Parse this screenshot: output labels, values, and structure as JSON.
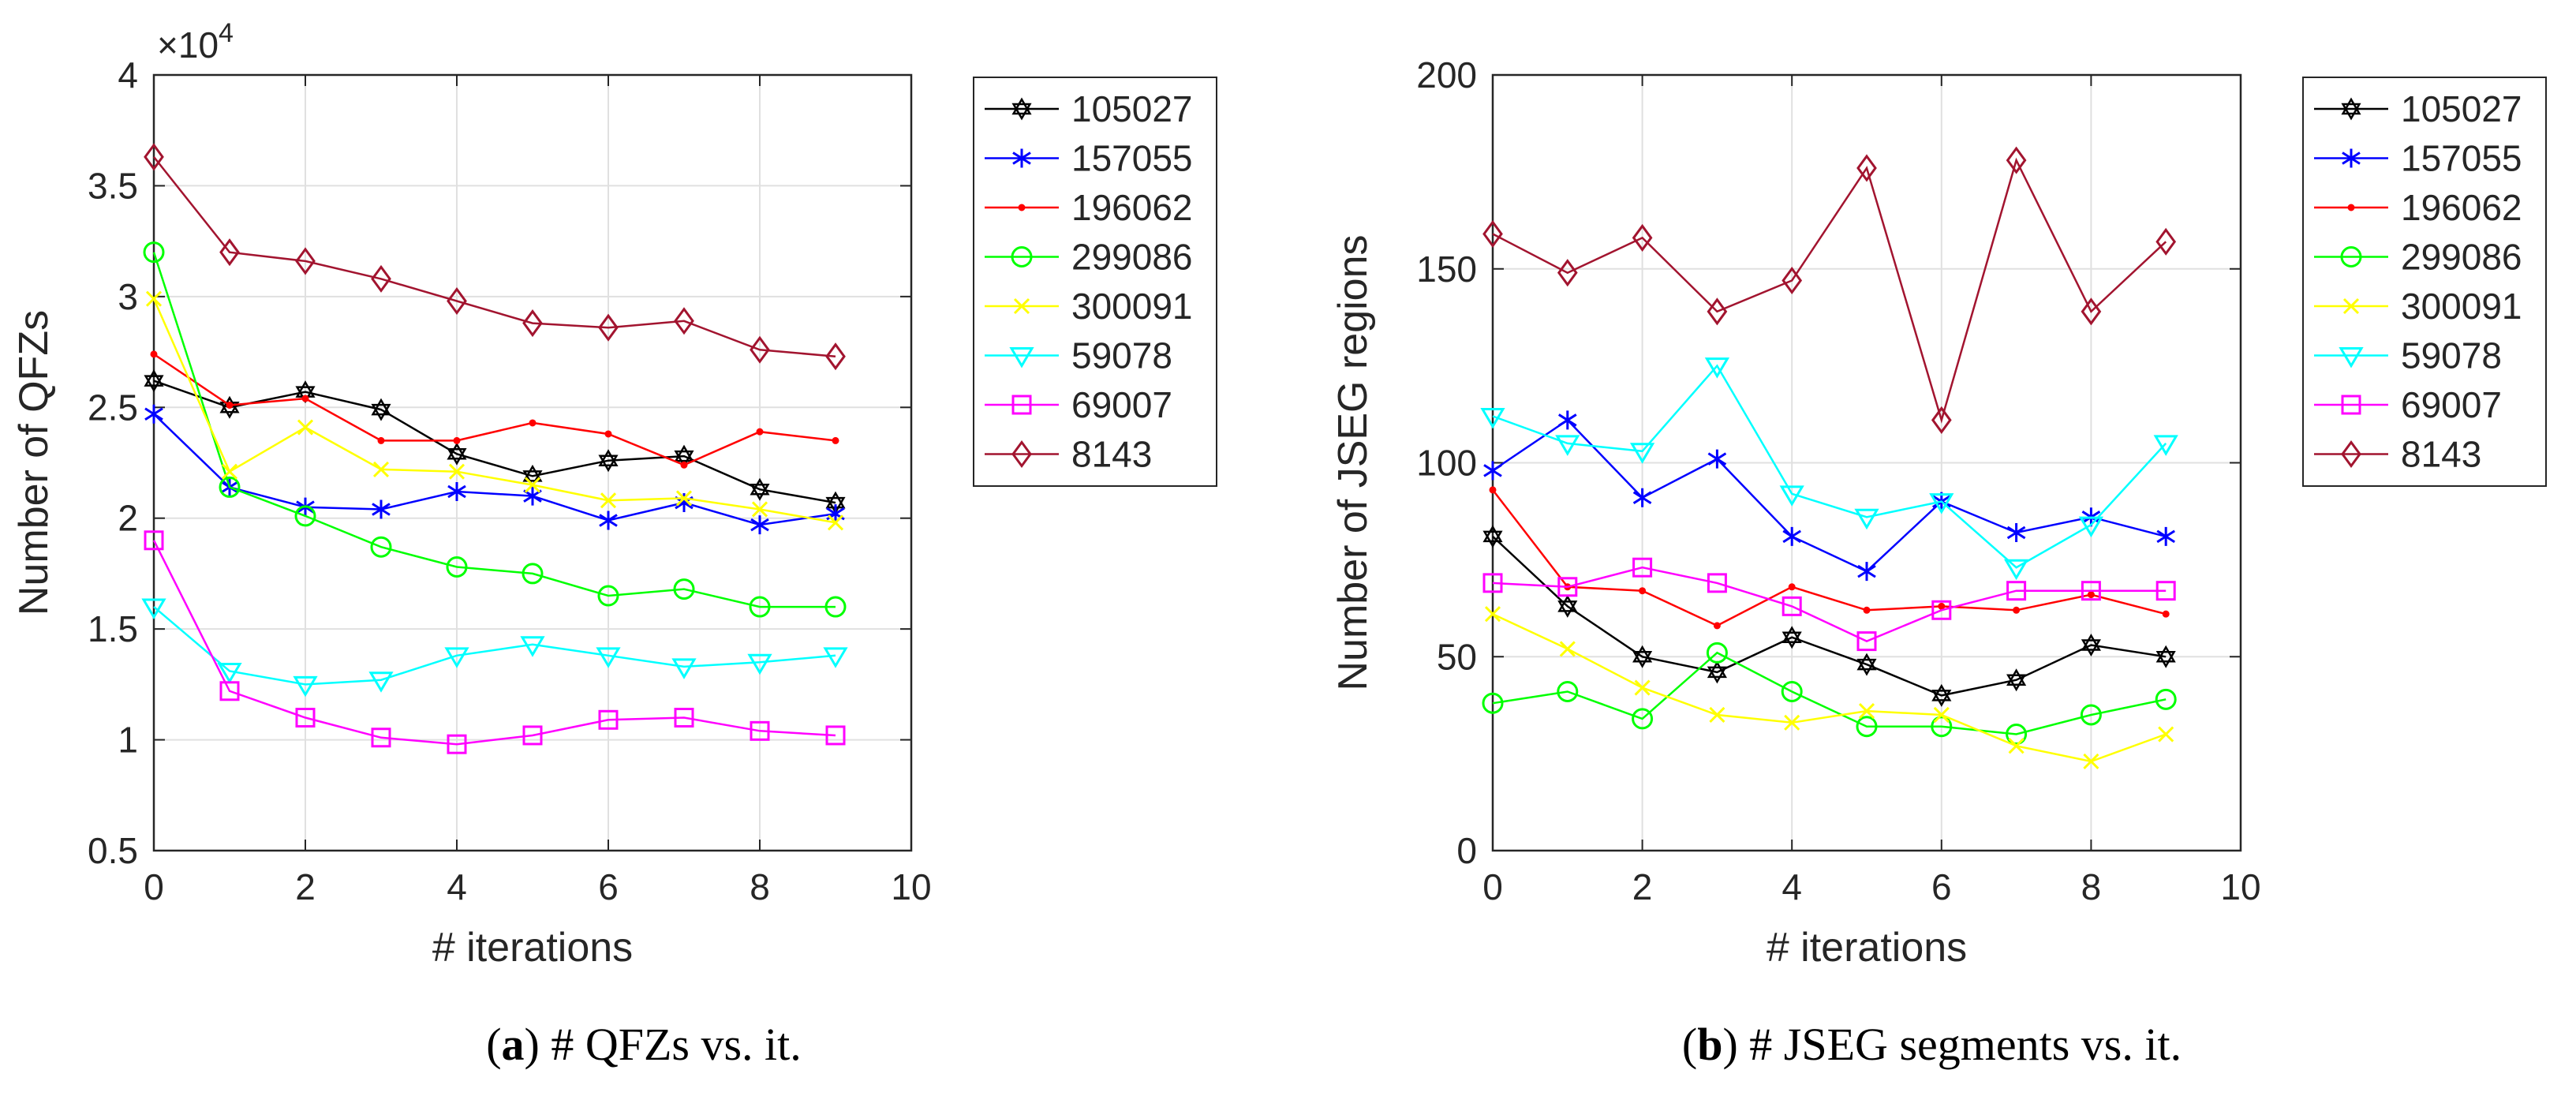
{
  "chart_data": [
    {
      "type": "line",
      "ylabel": "Number of QFZs",
      "xlabel": "# iterations",
      "y_exponent_label": "×10",
      "y_exponent_power": "4",
      "xlim": [
        0,
        10
      ],
      "ylim": [
        0.5,
        4
      ],
      "xticks": [
        "0",
        "2",
        "4",
        "6",
        "8",
        "10"
      ],
      "yticks": [
        "0.5",
        "1",
        "1.5",
        "2",
        "2.5",
        "3",
        "3.5",
        "4"
      ],
      "xtick_values": [
        0,
        2,
        4,
        6,
        8,
        10
      ],
      "ytick_values": [
        0.5,
        1,
        1.5,
        2,
        2.5,
        3,
        3.5,
        4
      ],
      "grid": true,
      "legend_position": "outside-right",
      "x": [
        0,
        1,
        2,
        3,
        4,
        5,
        6,
        7,
        8,
        9
      ],
      "series": [
        {
          "name": "105027",
          "color": "#000000",
          "marker": "hexagram",
          "values": [
            2.62,
            2.5,
            2.57,
            2.49,
            2.29,
            2.19,
            2.26,
            2.28,
            2.13,
            2.07
          ]
        },
        {
          "name": "157055",
          "color": "#0000ff",
          "marker": "asterisk",
          "values": [
            2.47,
            2.14,
            2.05,
            2.04,
            2.12,
            2.1,
            1.99,
            2.07,
            1.97,
            2.02
          ]
        },
        {
          "name": "196062",
          "color": "#ff0000",
          "marker": "dot",
          "values": [
            2.74,
            2.51,
            2.54,
            2.35,
            2.35,
            2.43,
            2.38,
            2.24,
            2.39,
            2.35
          ]
        },
        {
          "name": "299086",
          "color": "#00ff00",
          "marker": "circle",
          "values": [
            3.2,
            2.14,
            2.01,
            1.87,
            1.78,
            1.75,
            1.65,
            1.68,
            1.6,
            1.6
          ]
        },
        {
          "name": "300091",
          "color": "#ffff00",
          "marker": "x",
          "values": [
            2.99,
            2.21,
            2.41,
            2.22,
            2.21,
            2.15,
            2.08,
            2.09,
            2.04,
            1.98
          ]
        },
        {
          "name": "59078",
          "color": "#00ffff",
          "marker": "triangle-down",
          "values": [
            1.6,
            1.31,
            1.25,
            1.27,
            1.38,
            1.43,
            1.38,
            1.33,
            1.35,
            1.38
          ]
        },
        {
          "name": "69007",
          "color": "#ff00ff",
          "marker": "square",
          "values": [
            1.9,
            1.22,
            1.1,
            1.01,
            0.98,
            1.02,
            1.09,
            1.1,
            1.04,
            1.02
          ]
        },
        {
          "name": "8143",
          "color": "#a2142f",
          "marker": "diamond",
          "values": [
            3.63,
            3.2,
            3.16,
            3.08,
            2.98,
            2.88,
            2.86,
            2.89,
            2.76,
            2.73
          ]
        }
      ]
    },
    {
      "type": "line",
      "ylabel": "Number of JSEG regions",
      "xlabel": "# iterations",
      "xlim": [
        0,
        10
      ],
      "ylim": [
        0,
        200
      ],
      "xticks": [
        "0",
        "2",
        "4",
        "6",
        "8",
        "10"
      ],
      "yticks": [
        "0",
        "50",
        "100",
        "150",
        "200"
      ],
      "xtick_values": [
        0,
        2,
        4,
        6,
        8,
        10
      ],
      "ytick_values": [
        0,
        50,
        100,
        150,
        200
      ],
      "grid": true,
      "legend_position": "outside-right",
      "x": [
        0,
        1,
        2,
        3,
        4,
        5,
        6,
        7,
        8,
        9
      ],
      "series": [
        {
          "name": "105027",
          "color": "#000000",
          "marker": "hexagram",
          "values": [
            81,
            63,
            50,
            46,
            55,
            48,
            40,
            44,
            53,
            50
          ]
        },
        {
          "name": "157055",
          "color": "#0000ff",
          "marker": "asterisk",
          "values": [
            98,
            111,
            91,
            101,
            81,
            72,
            90,
            82,
            86,
            81
          ]
        },
        {
          "name": "196062",
          "color": "#ff0000",
          "marker": "dot",
          "values": [
            93,
            68,
            67,
            58,
            68,
            62,
            63,
            62,
            66,
            61
          ]
        },
        {
          "name": "299086",
          "color": "#00ff00",
          "marker": "circle",
          "values": [
            38,
            41,
            34,
            51,
            41,
            32,
            32,
            30,
            35,
            39
          ]
        },
        {
          "name": "300091",
          "color": "#ffff00",
          "marker": "x",
          "values": [
            61,
            52,
            42,
            35,
            33,
            36,
            35,
            27,
            23,
            30
          ]
        },
        {
          "name": "59078",
          "color": "#00ffff",
          "marker": "triangle-down",
          "values": [
            112,
            105,
            103,
            125,
            92,
            86,
            90,
            73,
            84,
            105
          ]
        },
        {
          "name": "69007",
          "color": "#ff00ff",
          "marker": "square",
          "values": [
            69,
            68,
            73,
            69,
            63,
            54,
            62,
            67,
            67,
            67
          ]
        },
        {
          "name": "8143",
          "color": "#a2142f",
          "marker": "diamond",
          "values": [
            159,
            149,
            158,
            139,
            147,
            176,
            111,
            178,
            139,
            157
          ]
        }
      ]
    }
  ],
  "captions": [
    {
      "label": "(a)",
      "text": " # QFZs vs. it."
    },
    {
      "label": "(b)",
      "text": " # JSEG segments vs. it."
    }
  ]
}
